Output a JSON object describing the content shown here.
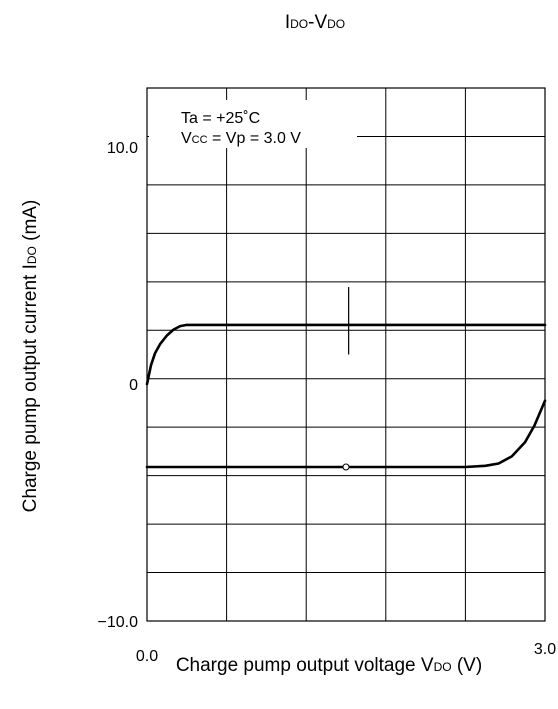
{
  "chart_data": {
    "type": "line",
    "title": {
      "main": "I",
      "sub": "DO",
      "sep": "-V",
      "sub2": "DO"
    },
    "xlabel": {
      "main": "Charge pump output voltage V",
      "sub": "DO",
      "tail": " (V)"
    },
    "ylabel": {
      "main": "Charge pump output current I",
      "sub": "DO",
      "tail": " (mA)"
    },
    "xlim": [
      0.0,
      3.0
    ],
    "ylim": [
      -10.0,
      12.5
    ],
    "x_ticks": [
      {
        "value": 0.0,
        "label": "0.0"
      },
      {
        "value": 3.0,
        "label": "3.0"
      }
    ],
    "y_ticks": [
      {
        "value": 10.0,
        "label": "10.0"
      },
      {
        "value": 0.0,
        "label": "0"
      },
      {
        "value": -10.0,
        "label": "−10.0"
      }
    ],
    "grid": true,
    "annotation": {
      "line1": "Ta = +25˚C",
      "line2_pre": "V",
      "line2_sub": "CC",
      "line2_post": " = Vp = 3.0 V"
    },
    "series": [
      {
        "x": [
          0.0,
          0.03,
          0.06,
          0.1,
          0.15,
          0.2,
          0.25,
          0.3,
          0.4,
          1.0,
          2.0,
          3.0
        ],
        "y": [
          0.0,
          0.8,
          1.3,
          1.7,
          2.05,
          2.3,
          2.45,
          2.5,
          2.5,
          2.5,
          2.5,
          2.5
        ]
      },
      {
        "x": [
          0.0,
          0.5,
          1.0,
          1.5,
          2.0,
          2.4,
          2.55,
          2.65,
          2.75,
          2.85,
          2.92,
          3.0
        ],
        "y": [
          -3.5,
          -3.5,
          -3.5,
          -3.5,
          -3.5,
          -3.5,
          -3.45,
          -3.35,
          -3.05,
          -2.45,
          -1.75,
          -0.7
        ]
      }
    ],
    "markers": [
      {
        "type": "vertical-tick",
        "x": 1.52,
        "y_from": 1.25,
        "y_to": 4.1
      },
      {
        "type": "circle",
        "x": 1.5,
        "y": -3.5
      }
    ]
  }
}
